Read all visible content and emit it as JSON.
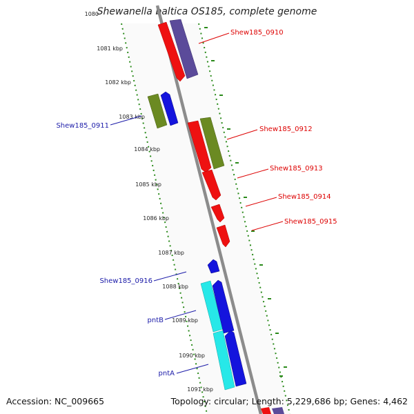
{
  "map": {
    "title": "Shewanella baltica OS185, complete genome",
    "accession": "Accession: NC_009665",
    "summary": "Topology: circular; Length: 5,229,686 bp; Genes: 4,462",
    "colors": {
      "backbone": "#8c8c8c",
      "tick": "#2a8a1a",
      "red": "#ee1111",
      "purple": "#5b4b9a",
      "olive": "#6b8a22",
      "blue": "#1414dd",
      "cyan": "#27e8e8",
      "label_red": "#dd0000",
      "label_blue": "#1a1aa8"
    },
    "ticks": [
      "1080",
      "1081 kbp",
      "1082 kbp",
      "1083 kbp",
      "1084 kbp",
      "1085 kbp",
      "1086 kbp",
      "1087 kbp",
      "1088 kbp",
      "1089 kbp",
      "1090 kbp",
      "1091 kbp"
    ],
    "gene_labels": [
      "Shew185_0910",
      "Shew185_0911",
      "Shew185_0912",
      "Shew185_0913",
      "Shew185_0914",
      "Shew185_0915",
      "Shew185_0916",
      "pntB",
      "pntA"
    ]
  }
}
